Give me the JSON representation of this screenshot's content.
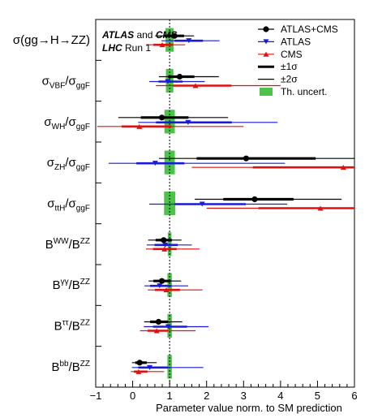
{
  "chart_data": {
    "type": "scatter",
    "xlabel": "Parameter value norm. to SM prediction",
    "xlim": [
      -1,
      6
    ],
    "xticks": [
      "−1",
      "0",
      "1",
      "2",
      "3",
      "4",
      "5",
      "6"
    ],
    "experiment_line1": {
      "bold1": "ATLAS",
      "mid": " and ",
      "bold2": "CMS"
    },
    "experiment_line2": {
      "bold": "LHC",
      "rest": " Run 1"
    },
    "sm_reference": 1,
    "legend": [
      {
        "label": "ATLAS+CMS",
        "marker": "circle",
        "color": "#000000"
      },
      {
        "label": "ATLAS",
        "marker": "triangle-down",
        "color": "#1a1adb"
      },
      {
        "label": "CMS",
        "marker": "triangle-up",
        "color": "#e01010"
      },
      {
        "label": "±1σ",
        "marker": "thick-line",
        "color": "#000000"
      },
      {
        "label": "±2σ",
        "marker": "thin-line",
        "color": "#000000"
      },
      {
        "label": "Th. uncert.",
        "marker": "box",
        "color": "#4dc24d"
      }
    ],
    "parameters": [
      {
        "main": "σ(gg→H→ZZ)",
        "sub": "",
        "main2": "",
        "sub2": "",
        "th": [
          0.89,
          1.11
        ],
        "series": {
          "combined": {
            "value": 1.13,
            "s1": [
              0.86,
              1.39
            ],
            "s2": [
              0.61,
              1.66
            ]
          },
          "atlas": {
            "value": 1.52,
            "s1": [
              1.13,
              1.9
            ],
            "s2": [
              0.78,
              2.35
            ]
          },
          "cms": {
            "value": 0.8,
            "s1": [
              0.56,
              1.08
            ],
            "s2": [
              0.36,
              1.42
            ]
          }
        }
      },
      {
        "main": "σ",
        "sub": "VBF",
        "main2": "/σ",
        "sub2": "ggF",
        "th": [
          0.9,
          1.1
        ],
        "series": {
          "combined": {
            "value": 1.27,
            "s1": [
              0.96,
              1.67
            ],
            "s2": [
              0.71,
              2.33
            ]
          },
          "atlas": {
            "value": 0.95,
            "s1": [
              0.7,
              1.35
            ],
            "s2": [
              0.45,
              1.95
            ]
          },
          "cms": {
            "value": 1.7,
            "s1": [
              1.09,
              2.67
            ],
            "s2": [
              0.63,
              4.0
            ]
          }
        }
      },
      {
        "main": "σ",
        "sub": "WH",
        "main2": "/σ",
        "sub2": "ggF",
        "th": [
          0.86,
          1.14
        ],
        "series": {
          "combined": {
            "value": 0.79,
            "s1": [
              0.22,
              1.51
            ],
            "s2": [
              -0.39,
              2.58
            ]
          },
          "atlas": {
            "value": 1.5,
            "s1": [
              0.63,
              2.68
            ],
            "s2": [
              0.15,
              3.92
            ]
          },
          "cms": {
            "value": 0.18,
            "s1": [
              -0.3,
              1.05
            ],
            "s2": [
              -0.96,
              3.0
            ]
          }
        }
      },
      {
        "main": "σ",
        "sub": "ZH",
        "main2": "/σ",
        "sub2": "ggF",
        "th": [
          0.86,
          1.14
        ],
        "series": {
          "combined": {
            "value": 3.07,
            "s1": [
              1.73,
              4.95
            ],
            "s2": [
              0.71,
              6.0
            ]
          },
          "atlas": {
            "value": 0.61,
            "s1": [
              0.1,
              1.4
            ],
            "s2": [
              -0.65,
              4.12
            ]
          },
          "cms": {
            "value": 5.7,
            "s1": [
              3.25,
              6.0
            ],
            "s2": [
              1.6,
              6.0
            ]
          }
        }
      },
      {
        "main": "σ",
        "sub": "ttH",
        "main2": "/σ",
        "sub2": "ggF",
        "th": [
          0.85,
          1.15
        ],
        "series": {
          "combined": {
            "value": 3.3,
            "s1": [
              2.45,
              4.35
            ],
            "s2": [
              1.68,
              5.65
            ]
          },
          "atlas": {
            "value": 1.88,
            "s1": [
              1.13,
              3.06
            ],
            "s2": [
              0.45,
              4.18
            ]
          },
          "cms": {
            "value": 5.08,
            "s1": [
              3.4,
              6.0
            ],
            "s2": [
              2.0,
              6.0
            ]
          }
        }
      },
      {
        "main": "B",
        "sub": "",
        "main2": "",
        "sub2": "",
        "sup": "WW",
        "tail": "/B",
        "sup2": "ZZ",
        "th": [
          0.95,
          1.05
        ],
        "series": {
          "combined": {
            "value": 0.84,
            "s1": [
              0.62,
              1.06
            ],
            "s2": [
              0.42,
              1.32
            ]
          },
          "atlas": {
            "value": 0.88,
            "s1": [
              0.59,
              1.22
            ],
            "s2": [
              0.38,
              1.6
            ]
          },
          "cms": {
            "value": 0.86,
            "s1": [
              0.55,
              1.19
            ],
            "s2": [
              0.36,
              1.81
            ]
          }
        }
      },
      {
        "main": "B",
        "sub": "",
        "main2": "",
        "sub2": "",
        "sup": "γγ",
        "tail": "/B",
        "sup2": "ZZ",
        "th": [
          0.94,
          1.06
        ],
        "series": {
          "combined": {
            "value": 0.79,
            "s1": [
              0.56,
              1.03
            ],
            "s2": [
              0.43,
              1.31
            ]
          },
          "atlas": {
            "value": 0.73,
            "s1": [
              0.47,
              1.05
            ],
            "s2": [
              0.32,
              1.5
            ]
          },
          "cms": {
            "value": 0.91,
            "s1": [
              0.6,
              1.28
            ],
            "s2": [
              0.41,
              1.89
            ]
          }
        }
      },
      {
        "main": "B",
        "sub": "",
        "main2": "",
        "sub2": "",
        "sup": "ττ",
        "tail": "/B",
        "sup2": "ZZ",
        "th": [
          0.94,
          1.06
        ],
        "series": {
          "combined": {
            "value": 0.7,
            "s1": [
              0.47,
              0.96
            ],
            "s2": [
              0.31,
              1.34
            ]
          },
          "atlas": {
            "value": 0.96,
            "s1": [
              0.55,
              1.47
            ],
            "s2": [
              0.3,
              2.05
            ]
          },
          "cms": {
            "value": 0.65,
            "s1": [
              0.4,
              0.95
            ],
            "s2": [
              0.2,
              1.7
            ]
          }
        }
      },
      {
        "main": "B",
        "sub": "",
        "main2": "",
        "sub2": "",
        "sup": "bb",
        "tail": "/B",
        "sup2": "ZZ",
        "th": [
          0.94,
          1.06
        ],
        "series": {
          "combined": {
            "value": 0.19,
            "s1": [
              0.07,
              0.38
            ],
            "s2": [
              -0.02,
              0.65
            ]
          },
          "atlas": {
            "value": 0.46,
            "s1": [
              0.15,
              0.96
            ],
            "s2": [
              -0.02,
              1.91
            ]
          },
          "cms": {
            "value": 0.16,
            "s1": [
              0.03,
              0.4
            ],
            "s2": [
              -0.05,
              0.85
            ]
          }
        }
      }
    ]
  }
}
